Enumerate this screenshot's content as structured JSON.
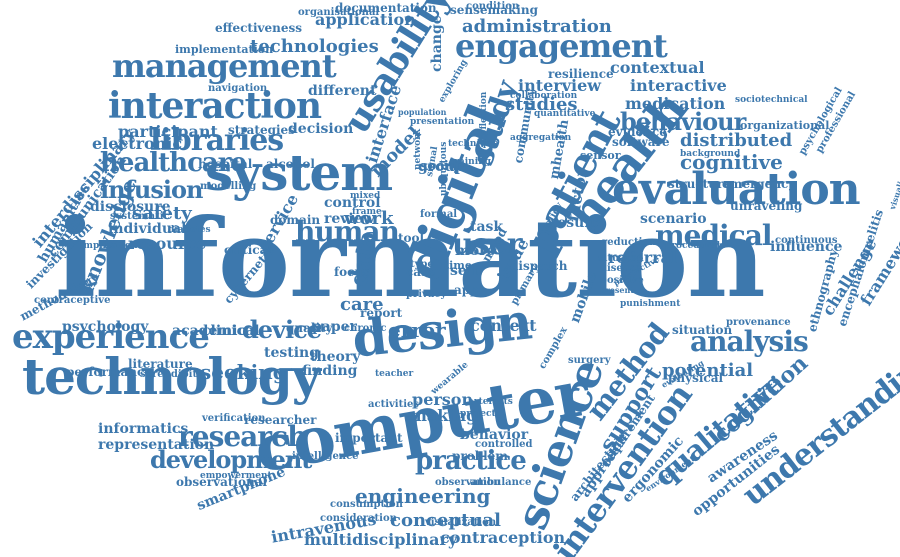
{
  "palette": {
    "primary": "#3d78ad",
    "background": "#ffffff"
  },
  "words": [
    "information",
    "technology",
    "computer",
    "design",
    "system",
    "evaluation",
    "interaction",
    "management",
    "engagement",
    "usability",
    "digital",
    "patient",
    "health",
    "science",
    "human",
    "user",
    "experience",
    "study",
    "libraries",
    "understanding",
    "intervention",
    "qualitative",
    "cognition",
    "method",
    "support",
    "research",
    "healthcare",
    "medical",
    "development",
    "infusion",
    "device",
    "analysis",
    "behaviour",
    "practice",
    "engineering",
    "technologies",
    "administration",
    "error",
    "context",
    "knowledge",
    "framework",
    "interdisciplinary",
    "communication",
    "challenge",
    "application",
    "documentation",
    "sensemaking",
    "contextual",
    "interactive",
    "medication",
    "distributed",
    "cognitive",
    "emergency",
    "structure",
    "safety",
    "disclosure",
    "individual",
    "resource",
    "electronic",
    "participant",
    "strategies",
    "decision",
    "hospital",
    "alcohol",
    "implementation",
    "navigation",
    "effectiveness",
    "organisational",
    "resilience",
    "interview",
    "studies",
    "different",
    "change",
    "model",
    "social",
    "factor",
    "mhealth",
    "community",
    "software",
    "evidence",
    "organizational",
    "sociotechnical",
    "psychological",
    "professional",
    "background",
    "influence",
    "continuous",
    "scenario",
    "unraveling",
    "referral",
    "reduction",
    "procedural",
    "provenance",
    "situation",
    "potential",
    "physical",
    "evaluating",
    "environment",
    "opportunities",
    "awareness",
    "ergonomic",
    "requirement",
    "approach",
    "architecture",
    "multidisciplinary",
    "contraception",
    "conceptual",
    "intravenous",
    "consideration",
    "consumption",
    "visualization",
    "ambulance",
    "observation",
    "problem",
    "controlled",
    "behavior",
    "person",
    "making",
    "activities",
    "important",
    "intelligence",
    "observational",
    "smartphone",
    "empowerment",
    "representation",
    "verification",
    "researcher",
    "informatics",
    "literature",
    "serendipity",
    "performance",
    "psychology",
    "methodology",
    "contraceptive",
    "investigation",
    "humanities",
    "implication",
    "systematic",
    "diabetes",
    "critical",
    "cybernetic",
    "academic",
    "clinical",
    "quality",
    "paper",
    "chronic",
    "testing",
    "theory",
    "finding",
    "seeking",
    "service",
    "domain",
    "modelling",
    "review",
    "work",
    "control",
    "case",
    "data",
    "care",
    "report",
    "focus",
    "type",
    "self",
    "more",
    "task",
    "result",
    "policy",
    "issue",
    "privacy",
    "mood",
    "dispatch",
    "condition",
    "mobile",
    "primary",
    "complex",
    "surgery",
    "positive",
    "present",
    "disease",
    "situated",
    "punishment",
    "perspective",
    "ethnography",
    "encephalomyelitis",
    "visualisation",
    "artefacts",
    "sensor",
    "group",
    "training",
    "interface",
    "project",
    "teacher",
    "formal",
    "frame",
    "tool",
    "time",
    "app",
    "mixed",
    "population",
    "collaboration",
    "quantitative",
    "presentation",
    "aggregation",
    "network",
    "ubiquitous",
    "signal",
    "reflection",
    "exploring",
    "technique",
    "wearable"
  ]
}
